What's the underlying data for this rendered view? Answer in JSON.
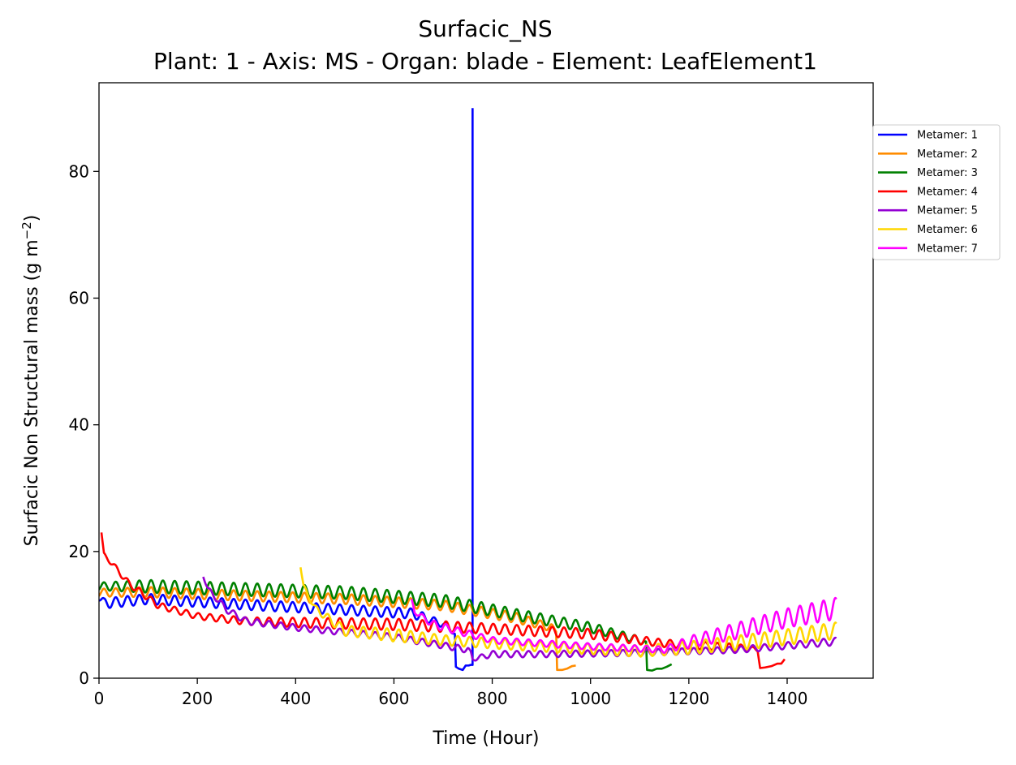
{
  "chart_data": {
    "type": "line",
    "title": "Surfacic_NS",
    "subtitle": "Plant: 1 - Axis: MS - Organ: blade - Element: LeafElement1",
    "xlabel": "Time (Hour)",
    "ylabel_main": "Surfacic Non Structural mass (g m",
    "ylabel_sup": "−2",
    "ylabel_close": ")",
    "xlim": [
      0,
      1575
    ],
    "ylim": [
      0,
      94
    ],
    "x_ticks": [
      0,
      200,
      400,
      600,
      800,
      1000,
      1200,
      1400
    ],
    "y_ticks": [
      0,
      20,
      40,
      60,
      80
    ],
    "grid": false,
    "legend_position": "upper right, outside plot",
    "series": [
      {
        "name": "Metamer: 1",
        "color": "#0000ff",
        "x_start": 0,
        "x_end": 760,
        "keyframes": [
          [
            0,
            12.8,
            0.6
          ],
          [
            10,
            11.8,
            0.8
          ],
          [
            100,
            12.5,
            0.8
          ],
          [
            300,
            11.6,
            0.8
          ],
          [
            500,
            10.8,
            0.8
          ],
          [
            640,
            10.2,
            0.8
          ],
          [
            700,
            8.5,
            0.5
          ],
          [
            722,
            7.2,
            0.3
          ]
        ],
        "extras": [
          [
            724,
            7.0
          ],
          [
            726,
            1.8
          ],
          [
            732,
            1.5
          ],
          [
            740,
            1.3
          ],
          [
            746,
            2.0
          ],
          [
            752,
            2.0
          ],
          [
            756,
            2.1
          ],
          [
            760,
            2.1
          ],
          [
            760,
            90
          ]
        ]
      },
      {
        "name": "Metamer: 2",
        "color": "#ff8c00",
        "x_start": 0,
        "x_end": 970,
        "keyframes": [
          [
            0,
            13.5,
            0.6
          ],
          [
            100,
            13.6,
            0.8
          ],
          [
            300,
            13.0,
            0.8
          ],
          [
            500,
            12.5,
            0.8
          ],
          [
            700,
            11.5,
            0.8
          ],
          [
            850,
            9.5,
            0.8
          ],
          [
            920,
            8.0,
            0.6
          ],
          [
            930,
            7.5,
            0.3
          ]
        ],
        "extras": [
          [
            932,
            1.3
          ],
          [
            942,
            1.3
          ],
          [
            952,
            1.5
          ],
          [
            962,
            1.9
          ],
          [
            970,
            2.0
          ]
        ]
      },
      {
        "name": "Metamer: 3",
        "color": "#008000",
        "x_start": 0,
        "x_end": 1165,
        "keyframes": [
          [
            0,
            14.5,
            0.6
          ],
          [
            100,
            14.5,
            1.0
          ],
          [
            300,
            14.0,
            1.0
          ],
          [
            500,
            13.5,
            1.0
          ],
          [
            700,
            12.2,
            1.0
          ],
          [
            850,
            10.0,
            0.9
          ],
          [
            1000,
            8.0,
            0.8
          ],
          [
            1100,
            6.0,
            0.6
          ],
          [
            1113,
            5.5,
            0.3
          ]
        ],
        "extras": [
          [
            1115,
            1.3
          ],
          [
            1125,
            1.2
          ],
          [
            1135,
            1.5
          ],
          [
            1145,
            1.5
          ],
          [
            1155,
            1.8
          ],
          [
            1165,
            2.2
          ]
        ]
      },
      {
        "name": "Metamer: 4",
        "color": "#ff0000",
        "x_start": 5,
        "x_end": 1395,
        "keyframes": [
          [
            5,
            23.0,
            0
          ],
          [
            10,
            19.5,
            0.3
          ],
          [
            30,
            17.8,
            0.4
          ],
          [
            60,
            15.0,
            0.5
          ],
          [
            120,
            11.5,
            0.5
          ],
          [
            200,
            9.8,
            0.5
          ],
          [
            300,
            9.0,
            0.6
          ],
          [
            450,
            8.7,
            0.8
          ],
          [
            600,
            8.5,
            0.9
          ],
          [
            800,
            7.8,
            0.8
          ],
          [
            1000,
            7.0,
            0.8
          ],
          [
            1150,
            5.5,
            0.6
          ],
          [
            1300,
            4.8,
            0.6
          ],
          [
            1340,
            4.5,
            0.3
          ]
        ],
        "extras": [
          [
            1345,
            1.6
          ],
          [
            1355,
            1.7
          ],
          [
            1368,
            1.9
          ],
          [
            1380,
            2.3
          ],
          [
            1388,
            2.3
          ],
          [
            1395,
            3.0
          ]
        ]
      },
      {
        "name": "Metamer: 5",
        "color": "#9400d3",
        "x_start": 212,
        "x_end": 1500,
        "keyframes": [
          [
            212,
            16.0,
            0
          ],
          [
            222,
            14.0,
            0.4
          ],
          [
            260,
            10.8,
            0.5
          ],
          [
            300,
            9.0,
            0.5
          ],
          [
            400,
            8.0,
            0.5
          ],
          [
            600,
            6.5,
            0.5
          ],
          [
            750,
            4.5,
            0.5
          ],
          [
            756,
            4.3,
            0
          ],
          [
            760,
            3.0,
            0.3
          ],
          [
            800,
            3.8,
            0.5
          ],
          [
            900,
            3.8,
            0.5
          ],
          [
            1100,
            4.0,
            0.5
          ],
          [
            1300,
            4.5,
            0.5
          ],
          [
            1500,
            5.8,
            0.6
          ]
        ],
        "extras": []
      },
      {
        "name": "Metamer: 6",
        "color": "#ffd700",
        "x_start": 410,
        "x_end": 1500,
        "keyframes": [
          [
            410,
            17.5,
            0
          ],
          [
            416,
            14.5,
            0.3
          ],
          [
            440,
            11.0,
            0.5
          ],
          [
            500,
            7.5,
            0.8
          ],
          [
            600,
            6.8,
            1.0
          ],
          [
            700,
            6.0,
            0.8
          ],
          [
            900,
            5.0,
            0.8
          ],
          [
            1100,
            4.3,
            0.9
          ],
          [
            1200,
            4.8,
            1.0
          ],
          [
            1350,
            6.0,
            1.2
          ],
          [
            1500,
            7.5,
            1.3
          ]
        ],
        "extras": []
      },
      {
        "name": "Metamer: 7",
        "color": "#ff00ff",
        "x_start": 636,
        "x_end": 1500,
        "keyframes": [
          [
            636,
            12.5,
            0
          ],
          [
            642,
            10.5,
            0.3
          ],
          [
            680,
            8.5,
            0.6
          ],
          [
            800,
            6.0,
            0.5
          ],
          [
            1000,
            5.0,
            0.5
          ],
          [
            1150,
            4.5,
            0.5
          ],
          [
            1200,
            5.7,
            0.9
          ],
          [
            1300,
            7.5,
            1.3
          ],
          [
            1400,
            9.5,
            1.5
          ],
          [
            1500,
            11.0,
            1.7
          ]
        ],
        "extras": []
      }
    ]
  }
}
